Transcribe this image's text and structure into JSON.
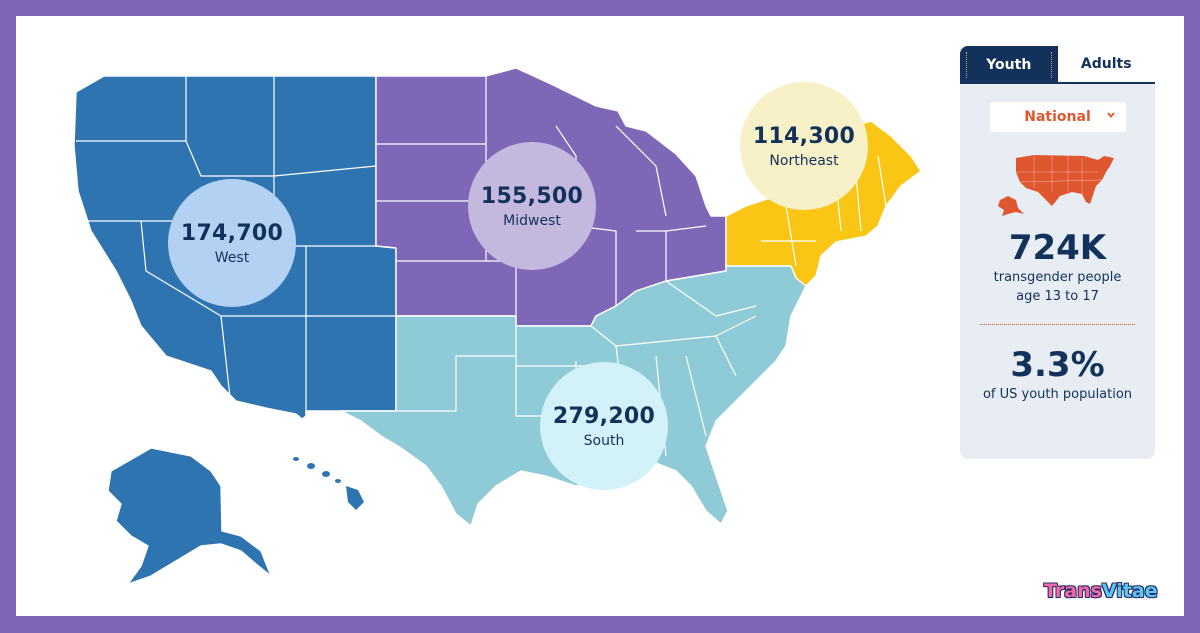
{
  "regions": {
    "west": {
      "value": "174,700",
      "label": "West",
      "fill": "#2d74b0",
      "bubble": "#b3d2f3"
    },
    "midwest": {
      "value": "155,500",
      "label": "Midwest",
      "fill": "#7f67b8",
      "bubble": "#c5b8df"
    },
    "northeast": {
      "value": "114,300",
      "label": "Northeast",
      "fill": "#f9c615",
      "bubble": "#f8f0c6"
    },
    "south": {
      "value": "279,200",
      "label": "South",
      "fill": "#8fcbd6",
      "bubble": "#d2f1f9"
    }
  },
  "panel": {
    "tabs": [
      {
        "label": "Youth",
        "active": true
      },
      {
        "label": "Adults",
        "active": false
      }
    ],
    "scope_select": "National",
    "map_icon_color": "#e0572f",
    "stat1_value": "724K",
    "stat1_line1": "transgender people",
    "stat1_line2": "age 13 to 17",
    "stat2_value": "3.3%",
    "stat2_line1": "of US youth population"
  },
  "brand": {
    "part1": "Trans",
    "part2": "Vitae"
  }
}
